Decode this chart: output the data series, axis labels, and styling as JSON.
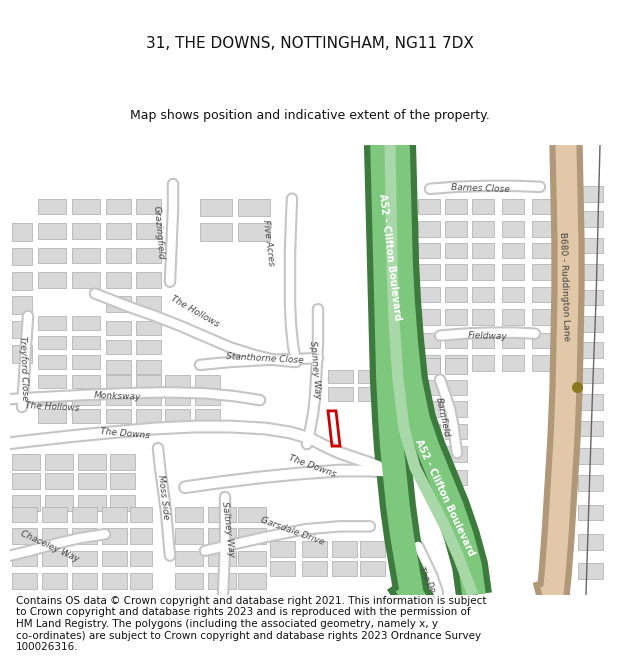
{
  "title": "31, THE DOWNS, NOTTINGHAM, NG11 7DX",
  "subtitle": "Map shows position and indicative extent of the property.",
  "copyright_text": "Contains OS data © Crown copyright and database right 2021. This information is subject\nto Crown copyright and database rights 2023 and is reproduced with the permission of\nHM Land Registry. The polygons (including the associated geometry, namely x, y\nco-ordinates) are subject to Crown copyright and database rights 2023 Ordnance Survey\n100026316.",
  "bg_color": "#ffffff",
  "map_bg": "#f0eeeb",
  "building_color": "#d8d8d8",
  "building_outline": "#aaaaaa",
  "road_fill": "#ffffff",
  "road_outline_color": "#c5c5c5",
  "a52_dark": "#3d7a3d",
  "a52_light": "#7ec87e",
  "b680_dark": "#b09878",
  "b680_light": "#e0c8a8",
  "plot_color": "#cc0000",
  "dot_color": "#8a7820",
  "title_fontsize": 11,
  "subtitle_fontsize": 9,
  "copyright_fontsize": 7.5,
  "street_label_color": "#444444",
  "a52_label_color": "#ffffff"
}
